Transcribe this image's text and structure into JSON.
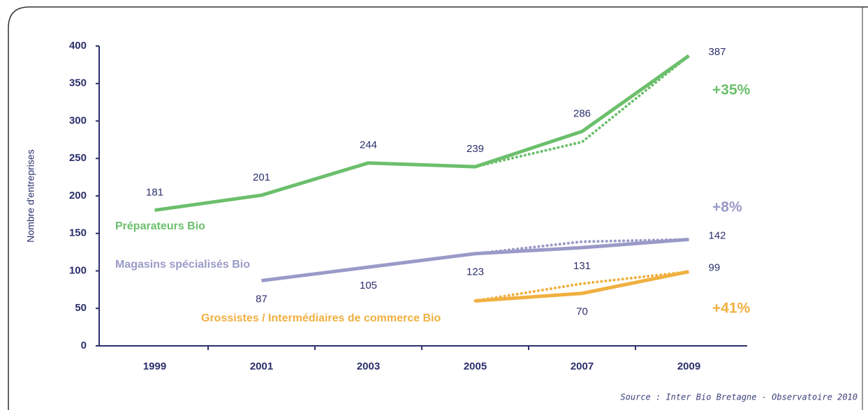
{
  "chart_data": {
    "type": "line",
    "y_label": "Nombre d'entreprises",
    "source": "Source : Inter Bio Bretagne - Observatoire 2010",
    "categories": [
      "1999",
      "2001",
      "2003",
      "2005",
      "2007",
      "2009"
    ],
    "ylim": [
      0,
      400
    ],
    "yticks": [
      0,
      50,
      100,
      150,
      200,
      250,
      300,
      350,
      400
    ],
    "series": [
      {
        "name": "Préparateurs Bio",
        "color": "#6cbf6c",
        "growth": "+35%",
        "label_position": "above",
        "values": [
          181,
          201,
          244,
          239,
          286,
          387
        ],
        "labeled": [
          true,
          true,
          true,
          true,
          true,
          true
        ],
        "trend": [
          null,
          null,
          null,
          239,
          272,
          387
        ]
      },
      {
        "name": "Magasins spécialisés Bio",
        "color": "#9a9ac8",
        "growth": "+8%",
        "label_position": "below",
        "values": [
          null,
          87,
          105,
          123,
          131,
          142
        ],
        "labeled": [
          false,
          true,
          true,
          true,
          true,
          true
        ],
        "trend": [
          null,
          null,
          null,
          123,
          139,
          142
        ]
      },
      {
        "name": "Grossistes / Intermédiaires de commerce Bio",
        "color": "#f0b040",
        "growth": "+41%",
        "label_position": "below",
        "values": [
          null,
          null,
          null,
          60,
          70,
          99
        ],
        "labeled": [
          false,
          false,
          false,
          false,
          true,
          true
        ],
        "trend": [
          null,
          null,
          null,
          60,
          83,
          99
        ]
      }
    ]
  }
}
